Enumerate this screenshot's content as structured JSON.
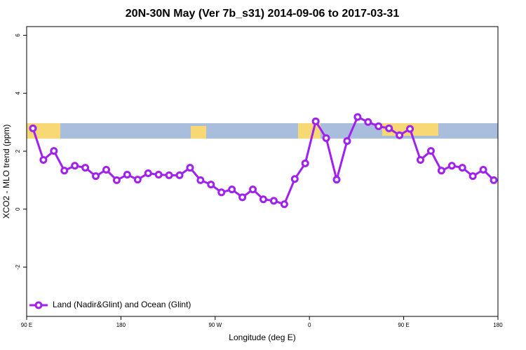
{
  "chart_data": {
    "type": "line",
    "title": "20N-30N May (Ver 7b_s31)   2014-09-06 to 2017-03-31",
    "x_label": "Longitude (deg E)",
    "y_label": "XCO2 - MLO trend (ppm)",
    "xlim": [
      90,
      540
    ],
    "xticks": [
      {
        "value": 90,
        "label": "90 E"
      },
      {
        "value": 180,
        "label": "180"
      },
      {
        "value": 270,
        "label": "90 W"
      },
      {
        "value": 360,
        "label": "0"
      },
      {
        "value": 450,
        "label": "90 E"
      },
      {
        "value": 540,
        "label": "180"
      }
    ],
    "ylim": [
      -3.7,
      6.3
    ],
    "yticks": [
      -2,
      0,
      2,
      4,
      6
    ],
    "legend_position": "bottom-left",
    "x": [
      96,
      106,
      116,
      126,
      136,
      146,
      156,
      166,
      176,
      186,
      196,
      206,
      216,
      226,
      236,
      246,
      256,
      266,
      276,
      286,
      296,
      306,
      316,
      326,
      336,
      346,
      356,
      366,
      376,
      386,
      396,
      406,
      416,
      426,
      436,
      446,
      456,
      466,
      476,
      486,
      496,
      506,
      516,
      526,
      536
    ],
    "series": [
      {
        "name": "Land (Nadir&Glint) and Ocean (Glint)",
        "color": "#a020f0",
        "values": [
          2.79,
          1.7,
          2.01,
          1.33,
          1.5,
          1.43,
          1.14,
          1.36,
          1.0,
          1.19,
          1.02,
          1.24,
          1.19,
          1.17,
          1.17,
          1.43,
          1.0,
          0.85,
          0.58,
          0.68,
          0.41,
          0.68,
          0.34,
          0.29,
          0.17,
          1.04,
          1.58,
          3.03,
          2.45,
          1.02,
          2.35,
          3.18,
          3.01,
          2.86,
          2.79,
          2.55,
          2.77,
          1.7,
          2.01,
          1.33,
          1.5,
          1.43,
          1.14,
          1.36,
          1.0
        ]
      }
    ]
  }
}
